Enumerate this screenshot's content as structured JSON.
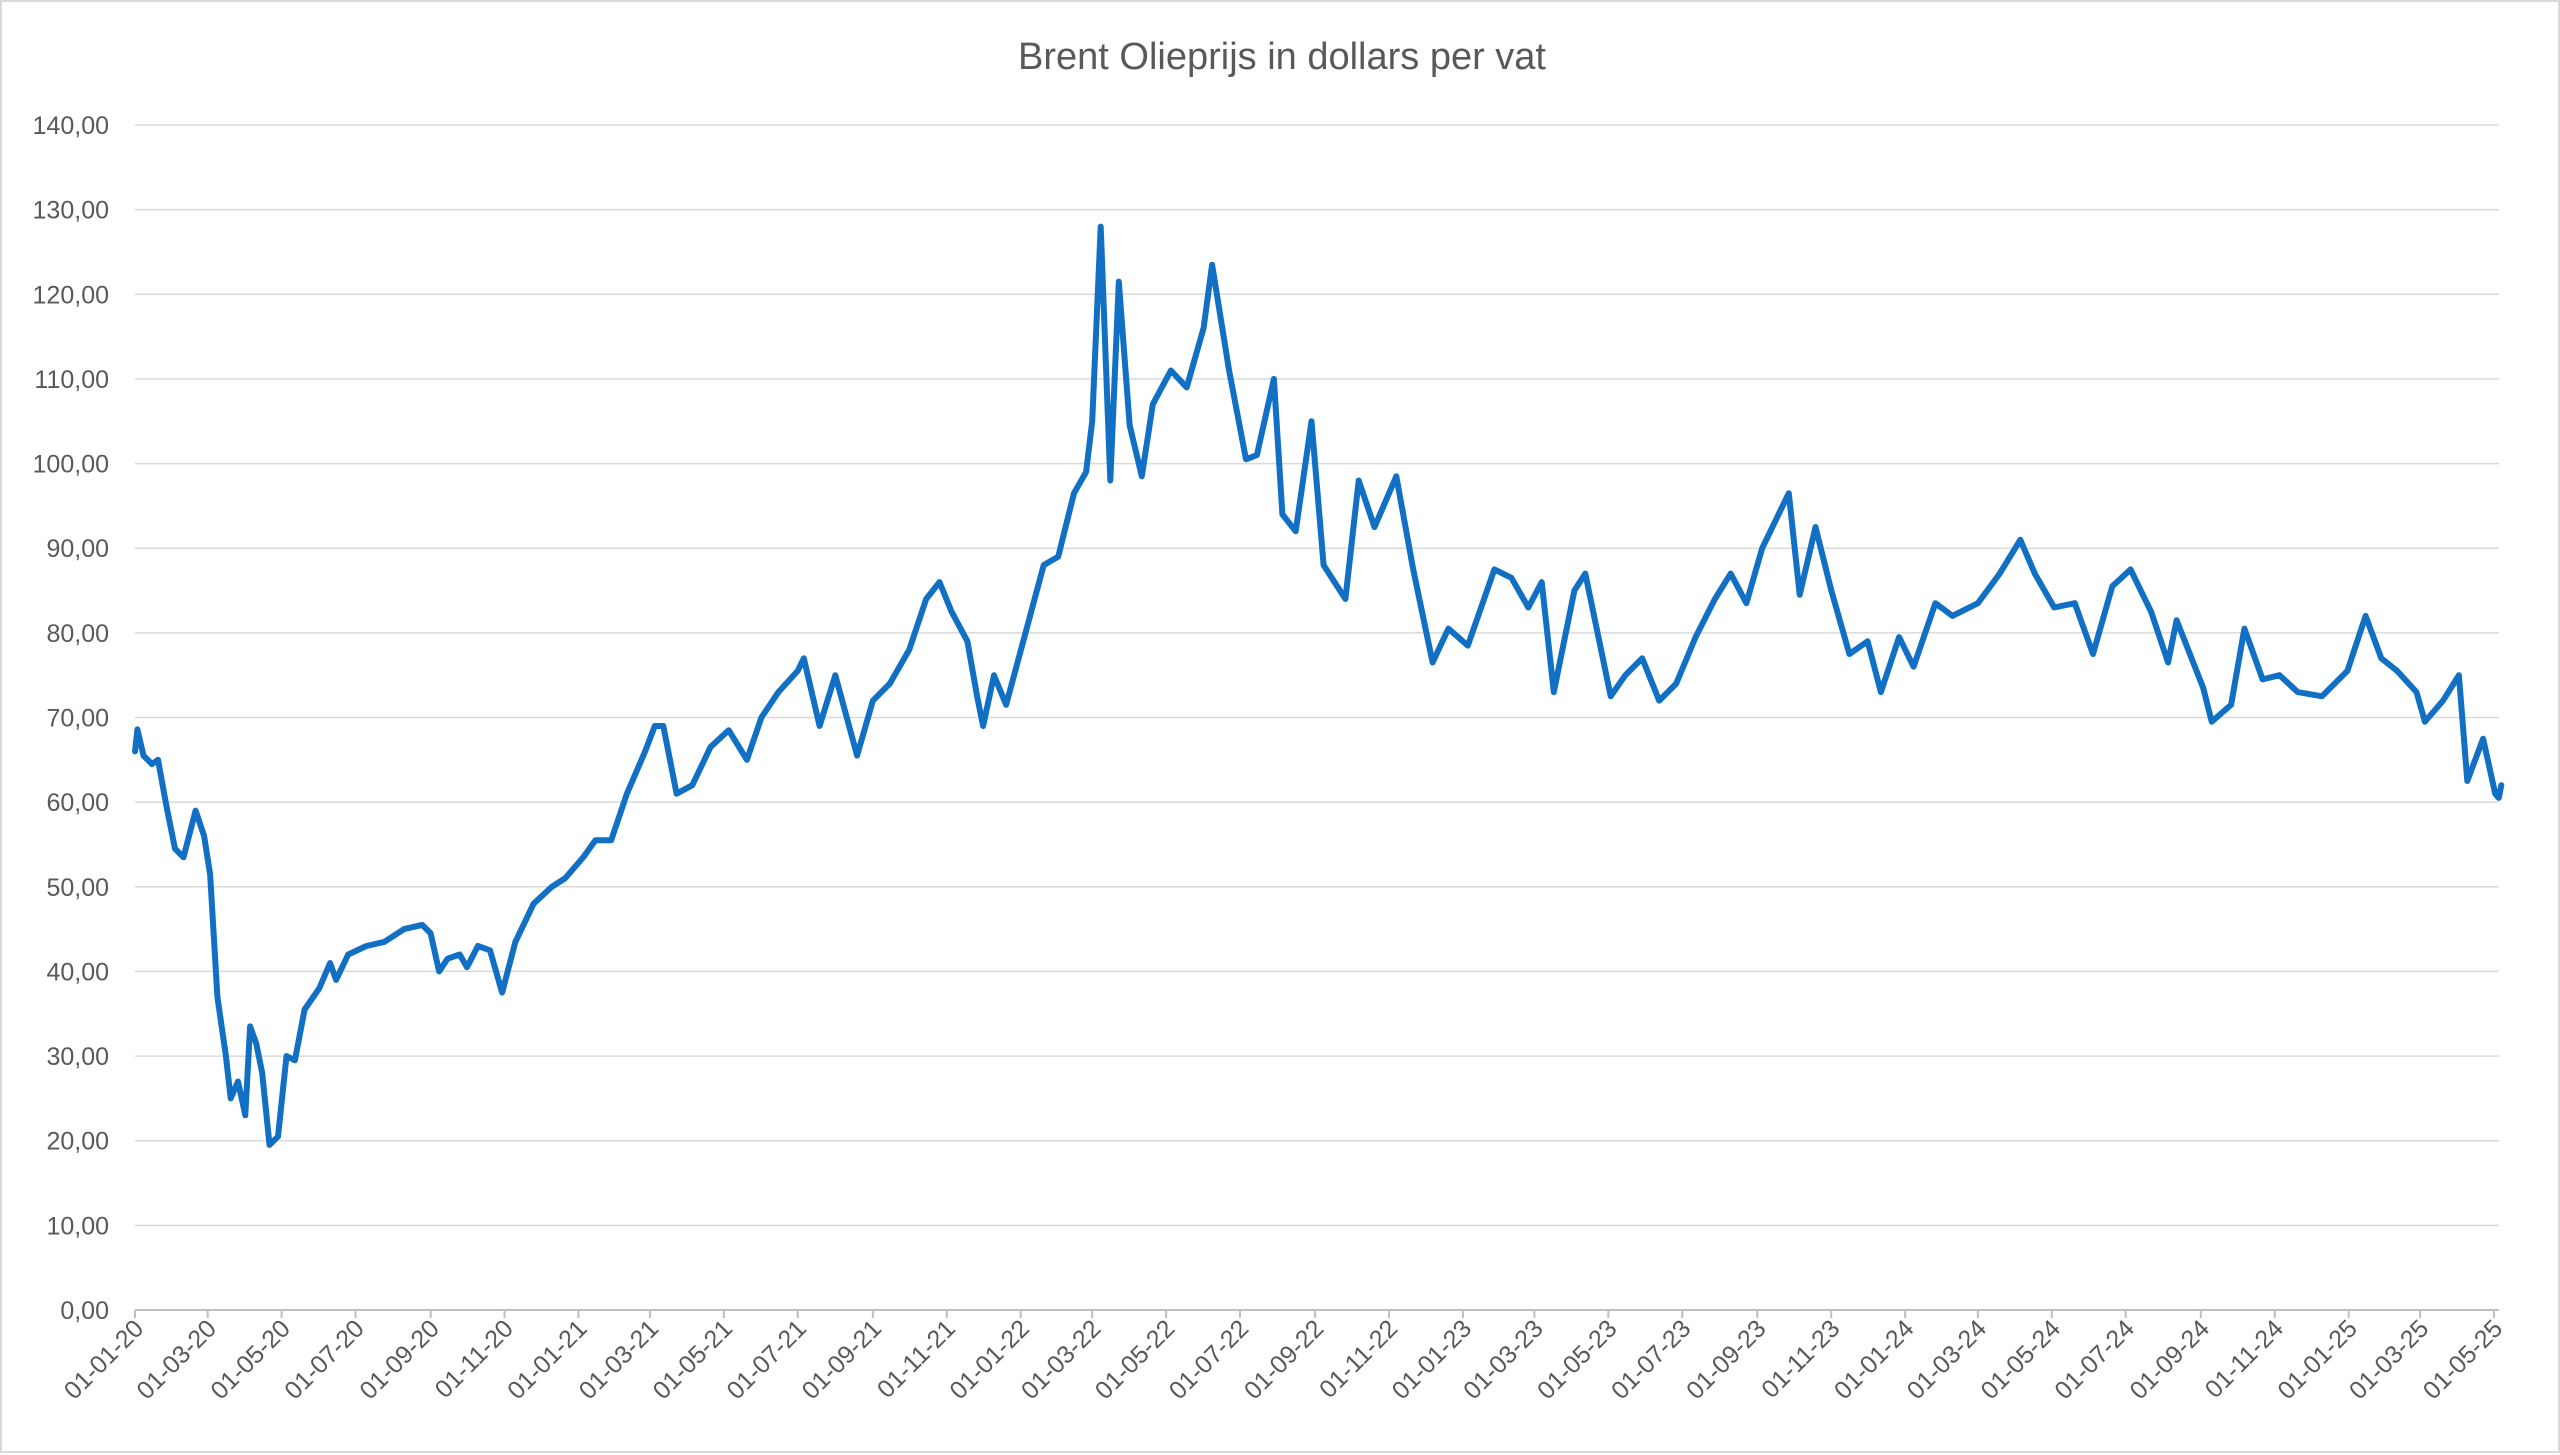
{
  "chart_data": {
    "type": "line",
    "title": "Brent Olieprijs in dollars per vat",
    "xlabel": "",
    "ylabel": "",
    "ylim": [
      0,
      140
    ],
    "grid": true,
    "legend": "none",
    "color": "#1170c4",
    "y_ticks": [
      "0,00",
      "10,00",
      "20,00",
      "30,00",
      "40,00",
      "50,00",
      "60,00",
      "70,00",
      "80,00",
      "90,00",
      "100,00",
      "110,00",
      "120,00",
      "130,00",
      "140,00"
    ],
    "x_ticks": [
      "01-01-20",
      "01-03-20",
      "01-05-20",
      "01-07-20",
      "01-09-20",
      "01-11-20",
      "01-01-21",
      "01-03-21",
      "01-05-21",
      "01-07-21",
      "01-09-21",
      "01-11-21",
      "01-01-22",
      "01-03-22",
      "01-05-22",
      "01-07-22",
      "01-09-22",
      "01-11-22",
      "01-01-23",
      "01-03-23",
      "01-05-23",
      "01-07-23",
      "01-09-23",
      "01-11-23",
      "01-01-24",
      "01-03-24",
      "01-05-24",
      "01-07-24",
      "01-09-24",
      "01-11-24",
      "01-01-25",
      "01-03-25",
      "01-05-25"
    ],
    "series": [
      {
        "points": [
          [
            "2020-01-01",
            66.0
          ],
          [
            "2020-01-03",
            68.6
          ],
          [
            "2020-01-08",
            65.5
          ],
          [
            "2020-01-15",
            64.5
          ],
          [
            "2020-01-20",
            65.0
          ],
          [
            "2020-01-27",
            59.5
          ],
          [
            "2020-02-03",
            54.5
          ],
          [
            "2020-02-10",
            53.5
          ],
          [
            "2020-02-20",
            59.0
          ],
          [
            "2020-02-27",
            56.0
          ],
          [
            "2020-03-03",
            51.5
          ],
          [
            "2020-03-09",
            37.0
          ],
          [
            "2020-03-16",
            30.0
          ],
          [
            "2020-03-20",
            25.0
          ],
          [
            "2020-03-26",
            27.0
          ],
          [
            "2020-04-01",
            23.0
          ],
          [
            "2020-04-05",
            33.5
          ],
          [
            "2020-04-10",
            31.5
          ],
          [
            "2020-04-15",
            28.0
          ],
          [
            "2020-04-21",
            19.5
          ],
          [
            "2020-04-28",
            20.5
          ],
          [
            "2020-05-05",
            30.0
          ],
          [
            "2020-05-12",
            29.5
          ],
          [
            "2020-05-20",
            35.5
          ],
          [
            "2020-06-01",
            38.0
          ],
          [
            "2020-06-10",
            41.0
          ],
          [
            "2020-06-15",
            39.0
          ],
          [
            "2020-06-25",
            42.0
          ],
          [
            "2020-07-10",
            43.0
          ],
          [
            "2020-07-25",
            43.5
          ],
          [
            "2020-08-10",
            45.0
          ],
          [
            "2020-08-25",
            45.5
          ],
          [
            "2020-09-01",
            44.5
          ],
          [
            "2020-09-08",
            40.0
          ],
          [
            "2020-09-15",
            41.5
          ],
          [
            "2020-09-25",
            42.0
          ],
          [
            "2020-10-01",
            40.5
          ],
          [
            "2020-10-10",
            43.0
          ],
          [
            "2020-10-20",
            42.5
          ],
          [
            "2020-10-30",
            37.5
          ],
          [
            "2020-11-10",
            43.5
          ],
          [
            "2020-11-25",
            48.0
          ],
          [
            "2020-12-10",
            50.0
          ],
          [
            "2020-12-21",
            51.0
          ],
          [
            "2021-01-05",
            53.5
          ],
          [
            "2021-01-15",
            55.5
          ],
          [
            "2021-01-28",
            55.5
          ],
          [
            "2021-02-10",
            61.0
          ],
          [
            "2021-02-25",
            66.0
          ],
          [
            "2021-03-05",
            69.0
          ],
          [
            "2021-03-12",
            69.0
          ],
          [
            "2021-03-23",
            61.0
          ],
          [
            "2021-04-05",
            62.0
          ],
          [
            "2021-04-20",
            66.5
          ],
          [
            "2021-05-05",
            68.5
          ],
          [
            "2021-05-20",
            65.0
          ],
          [
            "2021-06-01",
            70.0
          ],
          [
            "2021-06-15",
            73.0
          ],
          [
            "2021-07-01",
            75.5
          ],
          [
            "2021-07-06",
            77.0
          ],
          [
            "2021-07-19",
            69.0
          ],
          [
            "2021-08-01",
            75.0
          ],
          [
            "2021-08-19",
            65.5
          ],
          [
            "2021-09-01",
            72.0
          ],
          [
            "2021-09-15",
            74.0
          ],
          [
            "2021-10-01",
            78.0
          ],
          [
            "2021-10-15",
            84.0
          ],
          [
            "2021-10-26",
            86.0
          ],
          [
            "2021-11-05",
            82.5
          ],
          [
            "2021-11-18",
            79.0
          ],
          [
            "2021-11-26",
            72.5
          ],
          [
            "2021-12-01",
            69.0
          ],
          [
            "2021-12-10",
            75.0
          ],
          [
            "2021-12-20",
            71.5
          ],
          [
            "2022-01-05",
            80.0
          ],
          [
            "2022-01-20",
            88.0
          ],
          [
            "2022-02-01",
            89.0
          ],
          [
            "2022-02-14",
            96.5
          ],
          [
            "2022-02-24",
            99.0
          ],
          [
            "2022-03-01",
            105.0
          ],
          [
            "2022-03-08",
            128.0
          ],
          [
            "2022-03-16",
            98.0
          ],
          [
            "2022-03-23",
            121.5
          ],
          [
            "2022-04-01",
            104.5
          ],
          [
            "2022-04-11",
            98.5
          ],
          [
            "2022-04-20",
            107.0
          ],
          [
            "2022-05-05",
            111.0
          ],
          [
            "2022-05-18",
            109.0
          ],
          [
            "2022-06-01",
            116.0
          ],
          [
            "2022-06-08",
            123.5
          ],
          [
            "2022-06-22",
            111.0
          ],
          [
            "2022-07-06",
            100.5
          ],
          [
            "2022-07-15",
            101.0
          ],
          [
            "2022-07-29",
            110.0
          ],
          [
            "2022-08-05",
            94.0
          ],
          [
            "2022-08-16",
            92.0
          ],
          [
            "2022-08-29",
            105.0
          ],
          [
            "2022-09-08",
            88.0
          ],
          [
            "2022-09-26",
            84.0
          ],
          [
            "2022-10-07",
            98.0
          ],
          [
            "2022-10-20",
            92.5
          ],
          [
            "2022-11-07",
            98.5
          ],
          [
            "2022-11-21",
            87.5
          ],
          [
            "2022-12-07",
            76.5
          ],
          [
            "2022-12-20",
            80.5
          ],
          [
            "2023-01-05",
            78.5
          ],
          [
            "2023-01-27",
            87.5
          ],
          [
            "2023-02-10",
            86.5
          ],
          [
            "2023-02-24",
            83.0
          ],
          [
            "2023-03-07",
            86.0
          ],
          [
            "2023-03-17",
            73.0
          ],
          [
            "2023-04-03",
            85.0
          ],
          [
            "2023-04-12",
            87.0
          ],
          [
            "2023-05-03",
            72.5
          ],
          [
            "2023-05-15",
            75.0
          ],
          [
            "2023-05-29",
            77.0
          ],
          [
            "2023-06-12",
            72.0
          ],
          [
            "2023-06-26",
            74.0
          ],
          [
            "2023-07-12",
            79.5
          ],
          [
            "2023-07-28",
            84.0
          ],
          [
            "2023-08-10",
            87.0
          ],
          [
            "2023-08-23",
            83.5
          ],
          [
            "2023-09-05",
            90.0
          ],
          [
            "2023-09-27",
            96.5
          ],
          [
            "2023-10-06",
            84.5
          ],
          [
            "2023-10-19",
            92.5
          ],
          [
            "2023-11-01",
            85.0
          ],
          [
            "2023-11-16",
            77.5
          ],
          [
            "2023-12-01",
            79.0
          ],
          [
            "2023-12-12",
            73.0
          ],
          [
            "2023-12-27",
            79.5
          ],
          [
            "2024-01-08",
            76.0
          ],
          [
            "2024-01-26",
            83.5
          ],
          [
            "2024-02-09",
            82.0
          ],
          [
            "2024-03-01",
            83.5
          ],
          [
            "2024-03-19",
            87.0
          ],
          [
            "2024-04-05",
            91.0
          ],
          [
            "2024-04-17",
            87.0
          ],
          [
            "2024-05-03",
            83.0
          ],
          [
            "2024-05-20",
            83.5
          ],
          [
            "2024-06-04",
            77.5
          ],
          [
            "2024-06-20",
            85.5
          ],
          [
            "2024-07-05",
            87.5
          ],
          [
            "2024-07-22",
            82.5
          ],
          [
            "2024-08-05",
            76.5
          ],
          [
            "2024-08-12",
            81.5
          ],
          [
            "2024-09-03",
            73.5
          ],
          [
            "2024-09-10",
            69.5
          ],
          [
            "2024-09-26",
            71.5
          ],
          [
            "2024-10-07",
            80.5
          ],
          [
            "2024-10-22",
            74.5
          ],
          [
            "2024-11-05",
            75.0
          ],
          [
            "2024-11-20",
            73.0
          ],
          [
            "2024-12-10",
            72.5
          ],
          [
            "2024-12-31",
            75.5
          ],
          [
            "2025-01-15",
            82.0
          ],
          [
            "2025-01-28",
            77.0
          ],
          [
            "2025-02-10",
            75.5
          ],
          [
            "2025-02-26",
            73.0
          ],
          [
            "2025-03-05",
            69.5
          ],
          [
            "2025-03-20",
            72.0
          ],
          [
            "2025-04-02",
            75.0
          ],
          [
            "2025-04-09",
            62.5
          ],
          [
            "2025-04-22",
            67.5
          ],
          [
            "2025-05-02",
            61.0
          ],
          [
            "2025-05-05",
            60.5
          ],
          [
            "2025-05-07",
            62.0
          ]
        ]
      }
    ]
  }
}
